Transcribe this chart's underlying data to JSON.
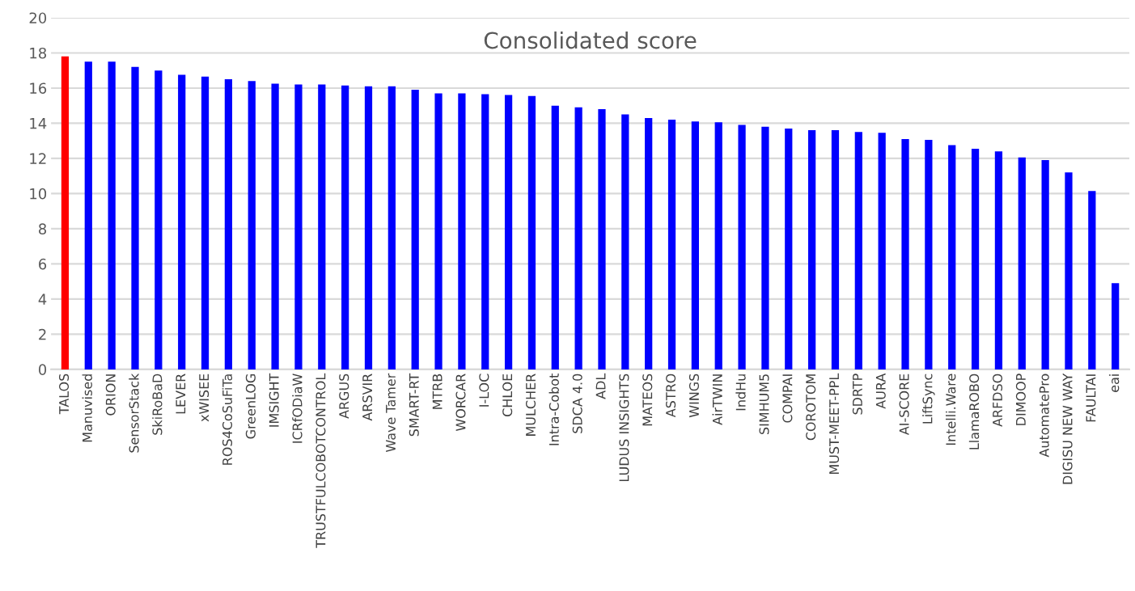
{
  "chart_data": {
    "type": "bar",
    "title": "Consolidated score",
    "categories": [
      "TALOS",
      "Manuvised",
      "ORION",
      "SensorStack",
      "SkiRoBaD",
      "LEVER",
      "xWISEE",
      "ROS4CoSuFiTa",
      "GreenLOG",
      "IMSIGHT",
      "ICRfODiaW",
      "TRUSTFULCOBOTCONTROL",
      "ARGUS",
      "ARSVIR",
      "Wave Tamer",
      "SMART-RT",
      "MTRB",
      "WORCAR",
      "I-LOC",
      "CHLOE",
      "MULCHER",
      "Intra-Cobot",
      "SDCA 4.0",
      "ADL",
      "LUDUS INSIGHTS",
      "MATEOS",
      "ASTRO",
      "WINGS",
      "AirTWIN",
      "IndHu",
      "SIMHUM5",
      "COMPAI",
      "COROTOM",
      "MUST-MEET-PPL",
      "SDRTP",
      "AURA",
      "AI-SCORE",
      "LiftSync",
      "Intelli.Ware",
      "LlamaROBO",
      "ARFDSO",
      "DIMOOP",
      "AutomatePro",
      "DIGISU NEW WAY",
      "FAULTAI",
      "eai"
    ],
    "values": [
      17.8,
      17.5,
      17.5,
      17.2,
      17.0,
      16.75,
      16.65,
      16.5,
      16.4,
      16.25,
      16.2,
      16.2,
      16.15,
      16.1,
      16.1,
      15.9,
      15.7,
      15.7,
      15.65,
      15.6,
      15.55,
      15.0,
      14.9,
      14.8,
      14.5,
      14.3,
      14.2,
      14.1,
      14.05,
      13.9,
      13.8,
      13.7,
      13.6,
      13.6,
      13.5,
      13.45,
      13.1,
      13.05,
      12.75,
      12.55,
      12.4,
      12.05,
      11.9,
      11.2,
      10.15,
      4.9
    ],
    "colors": [
      "#ff0000",
      "#0000ff",
      "#0000ff",
      "#0000ff",
      "#0000ff",
      "#0000ff",
      "#0000ff",
      "#0000ff",
      "#0000ff",
      "#0000ff",
      "#0000ff",
      "#0000ff",
      "#0000ff",
      "#0000ff",
      "#0000ff",
      "#0000ff",
      "#0000ff",
      "#0000ff",
      "#0000ff",
      "#0000ff",
      "#0000ff",
      "#0000ff",
      "#0000ff",
      "#0000ff",
      "#0000ff",
      "#0000ff",
      "#0000ff",
      "#0000ff",
      "#0000ff",
      "#0000ff",
      "#0000ff",
      "#0000ff",
      "#0000ff",
      "#0000ff",
      "#0000ff",
      "#0000ff",
      "#0000ff",
      "#0000ff",
      "#0000ff",
      "#0000ff",
      "#0000ff",
      "#0000ff",
      "#0000ff",
      "#0000ff",
      "#0000ff",
      "#0000ff"
    ],
    "ylim": [
      0,
      20
    ],
    "yticks": [
      0,
      2,
      4,
      6,
      8,
      10,
      12,
      14,
      16,
      18,
      20
    ],
    "grid": "y",
    "legend": false
  }
}
